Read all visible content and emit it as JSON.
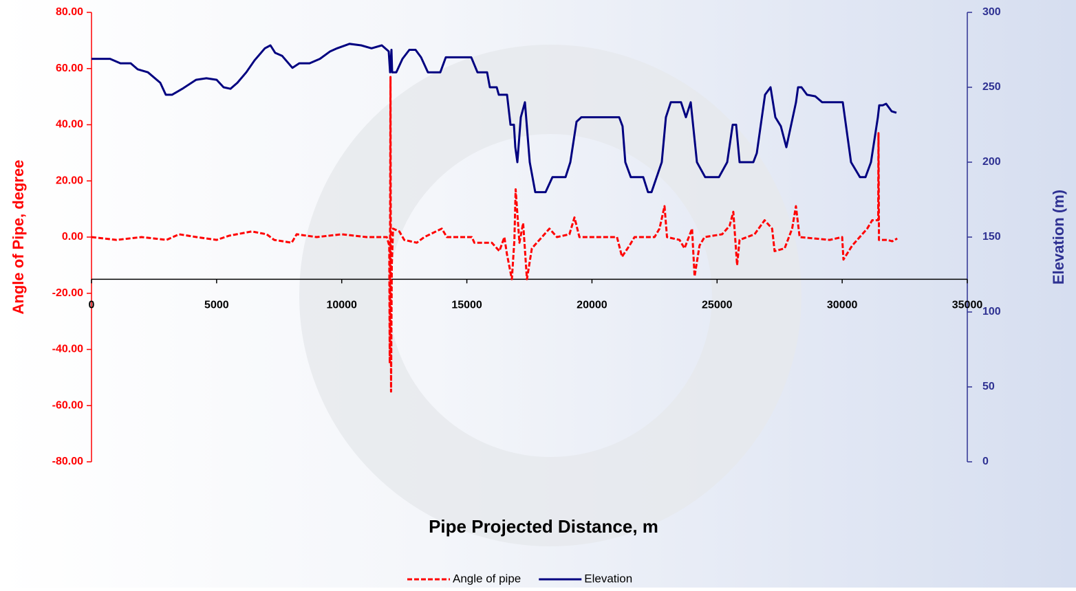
{
  "chart_data": {
    "type": "line",
    "xlabel": "Pipe Projected Distance, m",
    "ylabel": "Angle of Pipe, degree",
    "y2label": "Elevation (m)",
    "xlim": [
      0,
      35000
    ],
    "xticks": [
      0,
      5000,
      10000,
      15000,
      20000,
      25000,
      30000,
      35000
    ],
    "ylim": [
      -80,
      80
    ],
    "yticks": [
      {
        "value": -80,
        "label": "-80.00"
      },
      {
        "value": -60,
        "label": "-60.00"
      },
      {
        "value": -40,
        "label": "-40.00"
      },
      {
        "value": -20,
        "label": "-20.00"
      },
      {
        "value": 0,
        "label": "0.00"
      },
      {
        "value": 20,
        "label": "20.00"
      },
      {
        "value": 40,
        "label": "40.00"
      },
      {
        "value": 60,
        "label": "60.00"
      },
      {
        "value": 80,
        "label": "80.00"
      }
    ],
    "y2lim": [
      0,
      300
    ],
    "y2ticks": [
      0,
      50,
      100,
      150,
      200,
      250,
      300
    ],
    "x_axis_crosses_y": -15,
    "legend": "bottom",
    "series": [
      {
        "name": "Angle of pipe",
        "color": "#ff0000",
        "dash": true,
        "x": [
          0,
          1000,
          2000,
          3000,
          3500,
          4200,
          5000,
          5500,
          6400,
          7000,
          7300,
          8000,
          8200,
          9000,
          10000,
          11000,
          11800,
          11900,
          11920,
          11950,
          11970,
          12000,
          12050,
          12300,
          12500,
          13000,
          13300,
          14000,
          14200,
          15200,
          15300,
          16000,
          16300,
          16500,
          16600,
          16800,
          16900,
          16950,
          17100,
          17250,
          17400,
          17600,
          18000,
          18300,
          18600,
          19100,
          19300,
          19500,
          21000,
          21200,
          21500,
          21700,
          22500,
          22700,
          22900,
          23000,
          23500,
          23700,
          24000,
          24100,
          24300,
          24500,
          25200,
          25500,
          25650,
          25800,
          25900,
          26500,
          26900,
          27200,
          27300,
          27700,
          28000,
          28150,
          28300,
          29500,
          30000,
          30050,
          30400,
          31000,
          31200,
          31440,
          31450,
          31470,
          31800,
          32000,
          32200
        ],
        "values": [
          0,
          -1,
          0,
          -1,
          1,
          0,
          -1,
          0.5,
          2,
          1,
          -1,
          -2,
          1,
          0,
          1,
          0,
          0,
          -3,
          -45,
          57,
          -55,
          -10,
          3,
          2,
          -1,
          -2,
          0,
          3,
          0,
          0,
          -2,
          -2,
          -5,
          0,
          -6,
          -15,
          -1,
          17,
          -2,
          5,
          -15,
          -4,
          0,
          3,
          0,
          1,
          7,
          0,
          0,
          -7,
          -3,
          0,
          0,
          3,
          11,
          0,
          -1,
          -4,
          3,
          -14,
          -3,
          0,
          1,
          4,
          9,
          -10,
          -1,
          1,
          6,
          3,
          -5,
          -4,
          3,
          11,
          0,
          -1,
          0,
          -8,
          -3,
          3,
          6,
          6,
          37,
          -1,
          -1,
          -1.5,
          -0.5
        ]
      },
      {
        "name": "Elevation",
        "color": "#000080",
        "axis": "y2",
        "x": [
          0,
          742,
          1155,
          1567,
          1842,
          2254,
          2749,
          2970,
          3217,
          3630,
          4179,
          4591,
          5000,
          5279,
          5554,
          5829,
          6186,
          6516,
          6929,
          7150,
          7341,
          7616,
          8028,
          8303,
          8716,
          9128,
          9541,
          9816,
          10310,
          10778,
          11190,
          11603,
          11878,
          11933,
          11988,
          12015,
          12180,
          12427,
          12702,
          12950,
          13170,
          13445,
          13940,
          14160,
          15177,
          15424,
          15809,
          15919,
          16194,
          16277,
          16606,
          16744,
          16881,
          16936,
          17018,
          17156,
          17321,
          17513,
          17733,
          18145,
          18420,
          18943,
          19135,
          19382,
          19575,
          21087,
          21224,
          21334,
          21554,
          22049,
          22241,
          22379,
          22791,
          22956,
          23149,
          23561,
          23754,
          23947,
          24194,
          24524,
          25074,
          25404,
          25624,
          25762,
          25899,
          26449,
          26587,
          26917,
          27137,
          27329,
          27549,
          27769,
          28154,
          28236,
          28374,
          28594,
          28923,
          29198,
          30023,
          30353,
          30710,
          30930,
          31150,
          31425,
          31480,
          31617,
          31755,
          31975,
          32167
        ],
        "values": [
          269,
          269,
          266,
          266,
          262,
          260,
          253,
          245,
          245,
          249,
          255,
          256,
          255,
          250,
          249,
          253,
          260,
          268,
          276,
          278,
          273,
          271,
          263,
          266,
          266,
          269,
          274,
          276,
          279,
          278,
          276,
          278,
          274,
          260,
          275,
          260,
          260,
          269,
          275,
          275,
          270,
          260,
          260,
          270,
          270,
          260,
          260,
          250,
          250,
          245,
          245,
          225,
          225,
          210,
          200,
          230,
          240,
          200,
          180,
          180,
          190,
          190,
          200,
          227,
          230,
          230,
          224,
          200,
          190,
          190,
          180,
          180,
          200,
          230,
          240,
          240,
          230,
          240,
          200,
          190,
          190,
          200,
          225,
          225,
          200,
          200,
          206,
          245,
          250,
          230,
          224,
          210,
          240,
          250,
          250,
          245,
          244,
          240,
          240,
          200,
          190,
          190,
          200,
          230,
          238,
          238,
          239,
          234,
          233
        ]
      }
    ]
  }
}
